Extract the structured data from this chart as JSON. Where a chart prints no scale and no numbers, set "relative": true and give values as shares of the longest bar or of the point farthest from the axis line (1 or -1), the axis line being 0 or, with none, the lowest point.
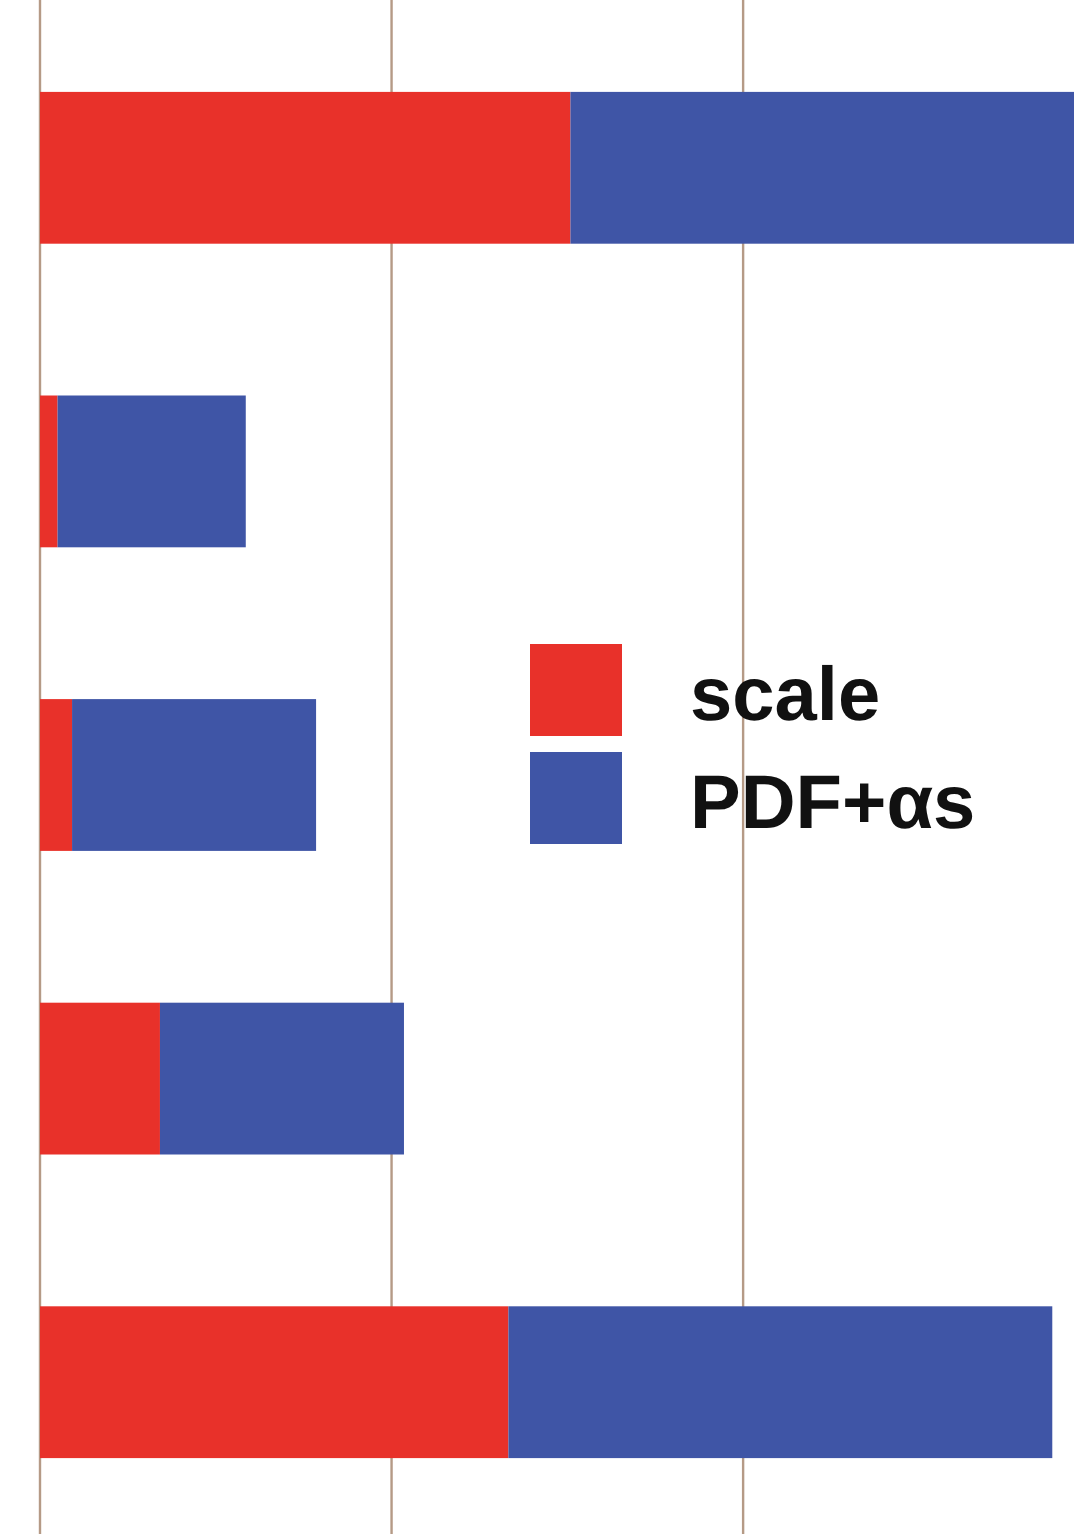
{
  "chart_data": {
    "type": "bar",
    "orientation": "horizontal",
    "stacked": true,
    "relative": true,
    "categories": [
      null,
      null,
      null,
      null,
      null
    ],
    "series": [
      {
        "name": "scale",
        "color": "#e8312a",
        "values": [
          0.513,
          0.017,
          0.031,
          0.116,
          0.453
        ]
      },
      {
        "name": "PDF+αs",
        "color": "#3f55a6",
        "values": [
          0.487,
          0.182,
          0.236,
          0.236,
          0.526
        ]
      }
    ],
    "ref_lines": [
      {
        "axis": "x",
        "value": 0.34,
        "color": "#b59a86"
      },
      {
        "axis": "x",
        "value": 0.68,
        "color": "#b59a86"
      }
    ],
    "legend": "right"
  }
}
